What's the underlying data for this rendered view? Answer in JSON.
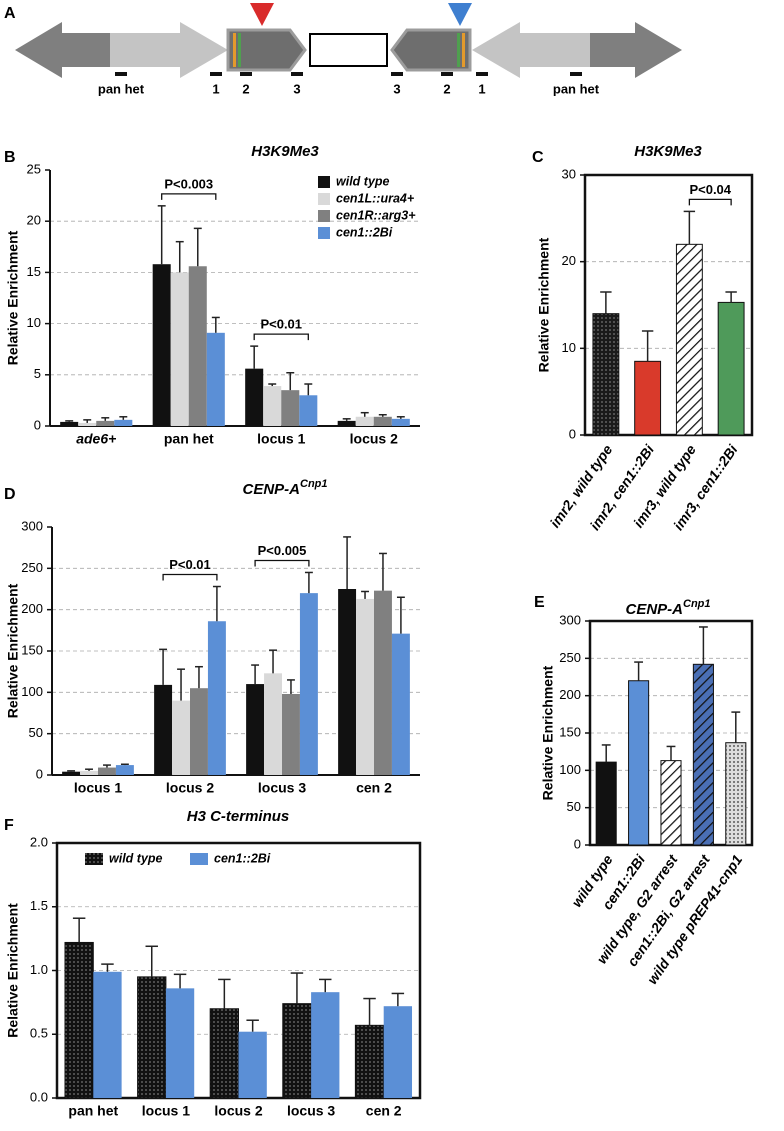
{
  "diagram": {
    "panel": "A",
    "labels": [
      "pan het",
      "1",
      "2",
      "3",
      "3",
      "2",
      "1",
      "pan het"
    ]
  },
  "chart_data": [
    {
      "type": "bar",
      "panel": "B",
      "title": "H3K9Me3",
      "y_label": "Relative Enrichment",
      "categories": [
        "ade6+",
        "pan het",
        "locus 1",
        "locus 2"
      ],
      "series": [
        {
          "name": "wild type",
          "color": "#111111",
          "values": [
            0.4,
            15.8,
            5.6,
            0.5
          ],
          "errors": [
            0.1,
            5.7,
            2.2,
            0.2
          ]
        },
        {
          "name": "cen1L::ura4+",
          "color": "#d9d9d9",
          "values": [
            0.3,
            15.0,
            3.9,
            0.9
          ],
          "errors": [
            0.3,
            3.0,
            0.2,
            0.4
          ]
        },
        {
          "name": "cen1R::arg3+",
          "color": "#808080",
          "values": [
            0.5,
            15.6,
            3.5,
            0.9
          ],
          "errors": [
            0.3,
            3.7,
            1.7,
            0.2
          ]
        },
        {
          "name": "cen1::2Bi",
          "color": "#5b8fd6",
          "values": [
            0.6,
            9.1,
            3.0,
            0.7
          ],
          "errors": [
            0.3,
            1.5,
            1.1,
            0.2
          ]
        }
      ],
      "ylim": [
        0,
        25
      ],
      "yticks": [
        0,
        5,
        10,
        15,
        20,
        25
      ],
      "grid": true,
      "box": false,
      "legend": "upper right",
      "annotations": [
        "P<0.003",
        "P<0.01"
      ]
    },
    {
      "type": "bar",
      "panel": "C",
      "title": "H3K9Me3",
      "y_label": "Relative Enrichment",
      "categories": [
        "imr2, wild type",
        "imr2, cen1::2Bi",
        "imr3, wild type",
        "imr3, cen1::2Bi"
      ],
      "values": [
        14,
        8.5,
        22,
        15.3
      ],
      "errors": [
        2.5,
        3.5,
        3.8,
        1.2
      ],
      "colors": [
        "#1a1a1a",
        "#d93a2b",
        "#ffffff",
        "#4f9a5a"
      ],
      "patterns": [
        "dots",
        "none",
        "hatch",
        "none"
      ],
      "ylim": [
        0,
        30
      ],
      "yticks": [
        0,
        10,
        20,
        30
      ],
      "grid": true,
      "box": true,
      "annotations": [
        "P<0.04"
      ]
    },
    {
      "type": "bar",
      "panel": "D",
      "title": "CENP-A",
      "title_superscript": "Cnp1",
      "y_label": "Relative Enrichment",
      "categories": [
        "locus 1",
        "locus 2",
        "locus 3",
        "cen 2"
      ],
      "series": [
        {
          "color": "#111111",
          "values": [
            4,
            109,
            110,
            225
          ],
          "errors": [
            1,
            43,
            23,
            63
          ]
        },
        {
          "color": "#d9d9d9",
          "values": [
            5,
            90,
            123,
            213
          ],
          "errors": [
            2,
            38,
            28,
            9
          ]
        },
        {
          "color": "#808080",
          "values": [
            9,
            105,
            98,
            223
          ],
          "errors": [
            3,
            26,
            17,
            45
          ]
        },
        {
          "color": "#5b8fd6",
          "values": [
            12,
            186,
            220,
            171
          ],
          "errors": [
            1,
            42,
            25,
            44
          ]
        }
      ],
      "ylim": [
        0,
        300
      ],
      "yticks": [
        0,
        50,
        100,
        150,
        200,
        250,
        300
      ],
      "grid": true,
      "box": false,
      "annotations": [
        "P<0.01",
        "P<0.005"
      ]
    },
    {
      "type": "bar",
      "panel": "E",
      "title": "CENP-A",
      "title_superscript": "Cnp1",
      "y_label": "Relative Enrichment",
      "categories": [
        "wild type",
        "cen1::2Bi",
        "wild type, G2 arrest",
        "cen1::2Bi, G2 arrest",
        "wild type pREP41-cnp1"
      ],
      "values": [
        111,
        220,
        113,
        242,
        137
      ],
      "errors": [
        23,
        25,
        19,
        50,
        41
      ],
      "colors": [
        "#111111",
        "#5b8fd6",
        "#ffffff",
        "#4a6fb5",
        "#dddddd"
      ],
      "patterns": [
        "none",
        "none",
        "hatch",
        "hatch",
        "dots"
      ],
      "ylim": [
        0,
        300
      ],
      "yticks": [
        0,
        50,
        100,
        150,
        200,
        250,
        300
      ],
      "grid": true,
      "box": true
    },
    {
      "type": "bar",
      "panel": "F",
      "title": "H3 C-terminus",
      "y_label": "Relative Enrichment",
      "categories": [
        "pan het",
        "locus 1",
        "locus 2",
        "locus 3",
        "cen 2"
      ],
      "series": [
        {
          "name": "wild type",
          "color": "#111111",
          "pattern": "dots",
          "values": [
            1.22,
            0.95,
            0.7,
            0.74,
            0.57
          ],
          "errors": [
            0.19,
            0.24,
            0.23,
            0.24,
            0.21
          ]
        },
        {
          "name": "cen1::2Bi",
          "color": "#5b8fd6",
          "values": [
            0.99,
            0.86,
            0.52,
            0.83,
            0.72
          ],
          "errors": [
            0.06,
            0.11,
            0.09,
            0.1,
            0.1
          ]
        }
      ],
      "ylim": [
        0,
        2
      ],
      "yticks": [
        {
          "value": 0,
          "label": "0.0"
        },
        0.5,
        {
          "value": 1,
          "label": "1.0"
        },
        1.5,
        {
          "value": 2,
          "label": "2.0"
        }
      ],
      "grid": true,
      "box": true,
      "legend": "upper left"
    }
  ]
}
